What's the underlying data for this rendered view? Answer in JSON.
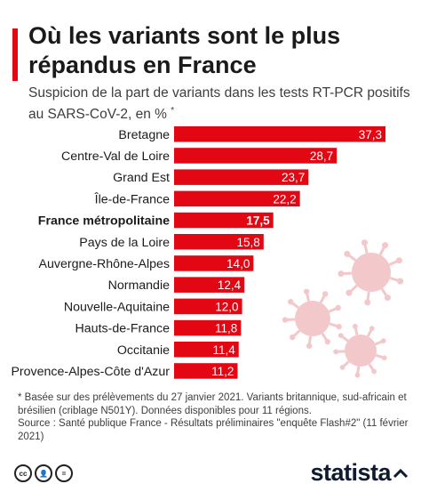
{
  "header": {
    "title": "Où les variants sont le plus répandus en France",
    "subtitle": "Suspicion de la part de variants dans les tests RT-PCR positifs au SARS-CoV-2, en %",
    "subtitle_mark": "*"
  },
  "chart_data": {
    "type": "bar",
    "orientation": "horizontal",
    "categories": [
      "Bretagne",
      "Centre-Val de Loire",
      "Grand Est",
      "Île-de-France",
      "France métropolitaine",
      "Pays de la Loire",
      "Auvergne-Rhône-Alpes",
      "Normandie",
      "Nouvelle-Aquitaine",
      "Hauts-de-France",
      "Occitanie",
      "Provence-Alpes-Côte d'Azur"
    ],
    "values": [
      37.3,
      28.7,
      23.7,
      22.2,
      17.5,
      15.8,
      14.0,
      12.4,
      12.0,
      11.8,
      11.4,
      11.2
    ],
    "value_labels": [
      "37,3",
      "28,7",
      "23,7",
      "22,2",
      "17,5",
      "15,8",
      "14,0",
      "12,4",
      "12,0",
      "11,8",
      "11,4",
      "11,2"
    ],
    "highlighted_category": "France métropolitaine",
    "bar_color": "#e30613",
    "label_color": "#ffffff",
    "xlim": [
      0,
      37.3
    ],
    "grid": false,
    "legend": "none"
  },
  "notes": {
    "footnote": "* Basée sur des prélèvements du 27 janvier 2021. Variants britannique, sud-africain et brésilien (criblage N501Y). Données disponibles pour 11 régions.",
    "source": "Source : Santé publique France - Résultats préliminaires \"enquête Flash#2\" (11 février 2021)"
  },
  "footer": {
    "brand": "statista",
    "license_icons": [
      "cc-icon",
      "person-icon",
      "equals-icon"
    ],
    "license_glyphs": [
      "cc",
      "👤",
      "="
    ]
  },
  "colors": {
    "accent": "#e30613",
    "virus_illustration": "#f2c8cb"
  }
}
